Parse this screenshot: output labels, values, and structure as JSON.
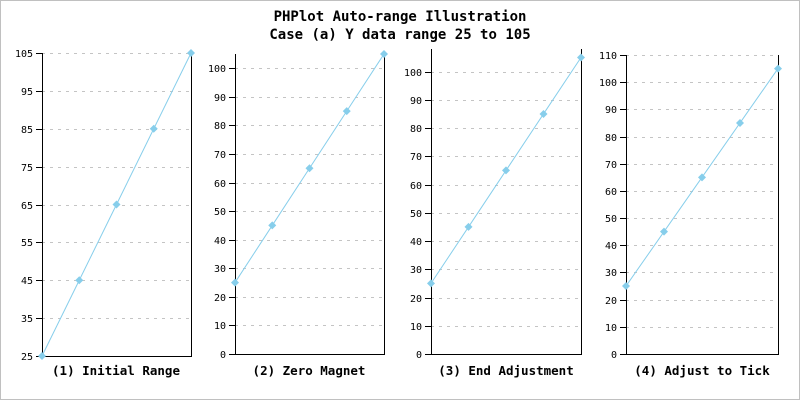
{
  "title": {
    "line1": "PHPlot Auto-range Illustration",
    "line2": "Case (a) Y data range 25 to 105"
  },
  "colors": {
    "series": "#87CEEB",
    "axis": "#000000",
    "grid": "#C4C4C4",
    "text": "#000000",
    "background": "#FFFFFF",
    "image_border": "#C0C0C0"
  },
  "chart_data": [
    {
      "type": "line",
      "caption": "(1) Initial Range",
      "values": [
        25,
        45,
        65,
        85,
        105
      ],
      "ylim": [
        25,
        105
      ],
      "yticks": [
        25,
        35,
        45,
        55,
        65,
        75,
        85,
        95,
        105
      ],
      "grid": "horizontal-dashed",
      "marker": "diamond",
      "legend": "none",
      "x_tick_labels": []
    },
    {
      "type": "line",
      "caption": "(2) Zero Magnet",
      "values": [
        25,
        45,
        65,
        85,
        105
      ],
      "ylim": [
        0,
        105
      ],
      "yticks": [
        0,
        10,
        20,
        30,
        40,
        50,
        60,
        70,
        80,
        90,
        100
      ],
      "grid": "horizontal-dashed",
      "marker": "diamond",
      "legend": "none",
      "x_tick_labels": []
    },
    {
      "type": "line",
      "caption": "(3) End Adjustment",
      "values": [
        25,
        45,
        65,
        85,
        105
      ],
      "ylim": [
        0,
        108
      ],
      "yticks": [
        0,
        10,
        20,
        30,
        40,
        50,
        60,
        70,
        80,
        90,
        100
      ],
      "grid": "horizontal-dashed",
      "marker": "diamond",
      "legend": "none",
      "x_tick_labels": []
    },
    {
      "type": "line",
      "caption": "(4) Adjust to Tick",
      "values": [
        25,
        45,
        65,
        85,
        105
      ],
      "ylim": [
        0,
        110
      ],
      "yticks": [
        0,
        10,
        20,
        30,
        40,
        50,
        60,
        70,
        80,
        90,
        100,
        110
      ],
      "grid": "horizontal-dashed",
      "marker": "diamond",
      "legend": "none",
      "x_tick_labels": []
    }
  ]
}
